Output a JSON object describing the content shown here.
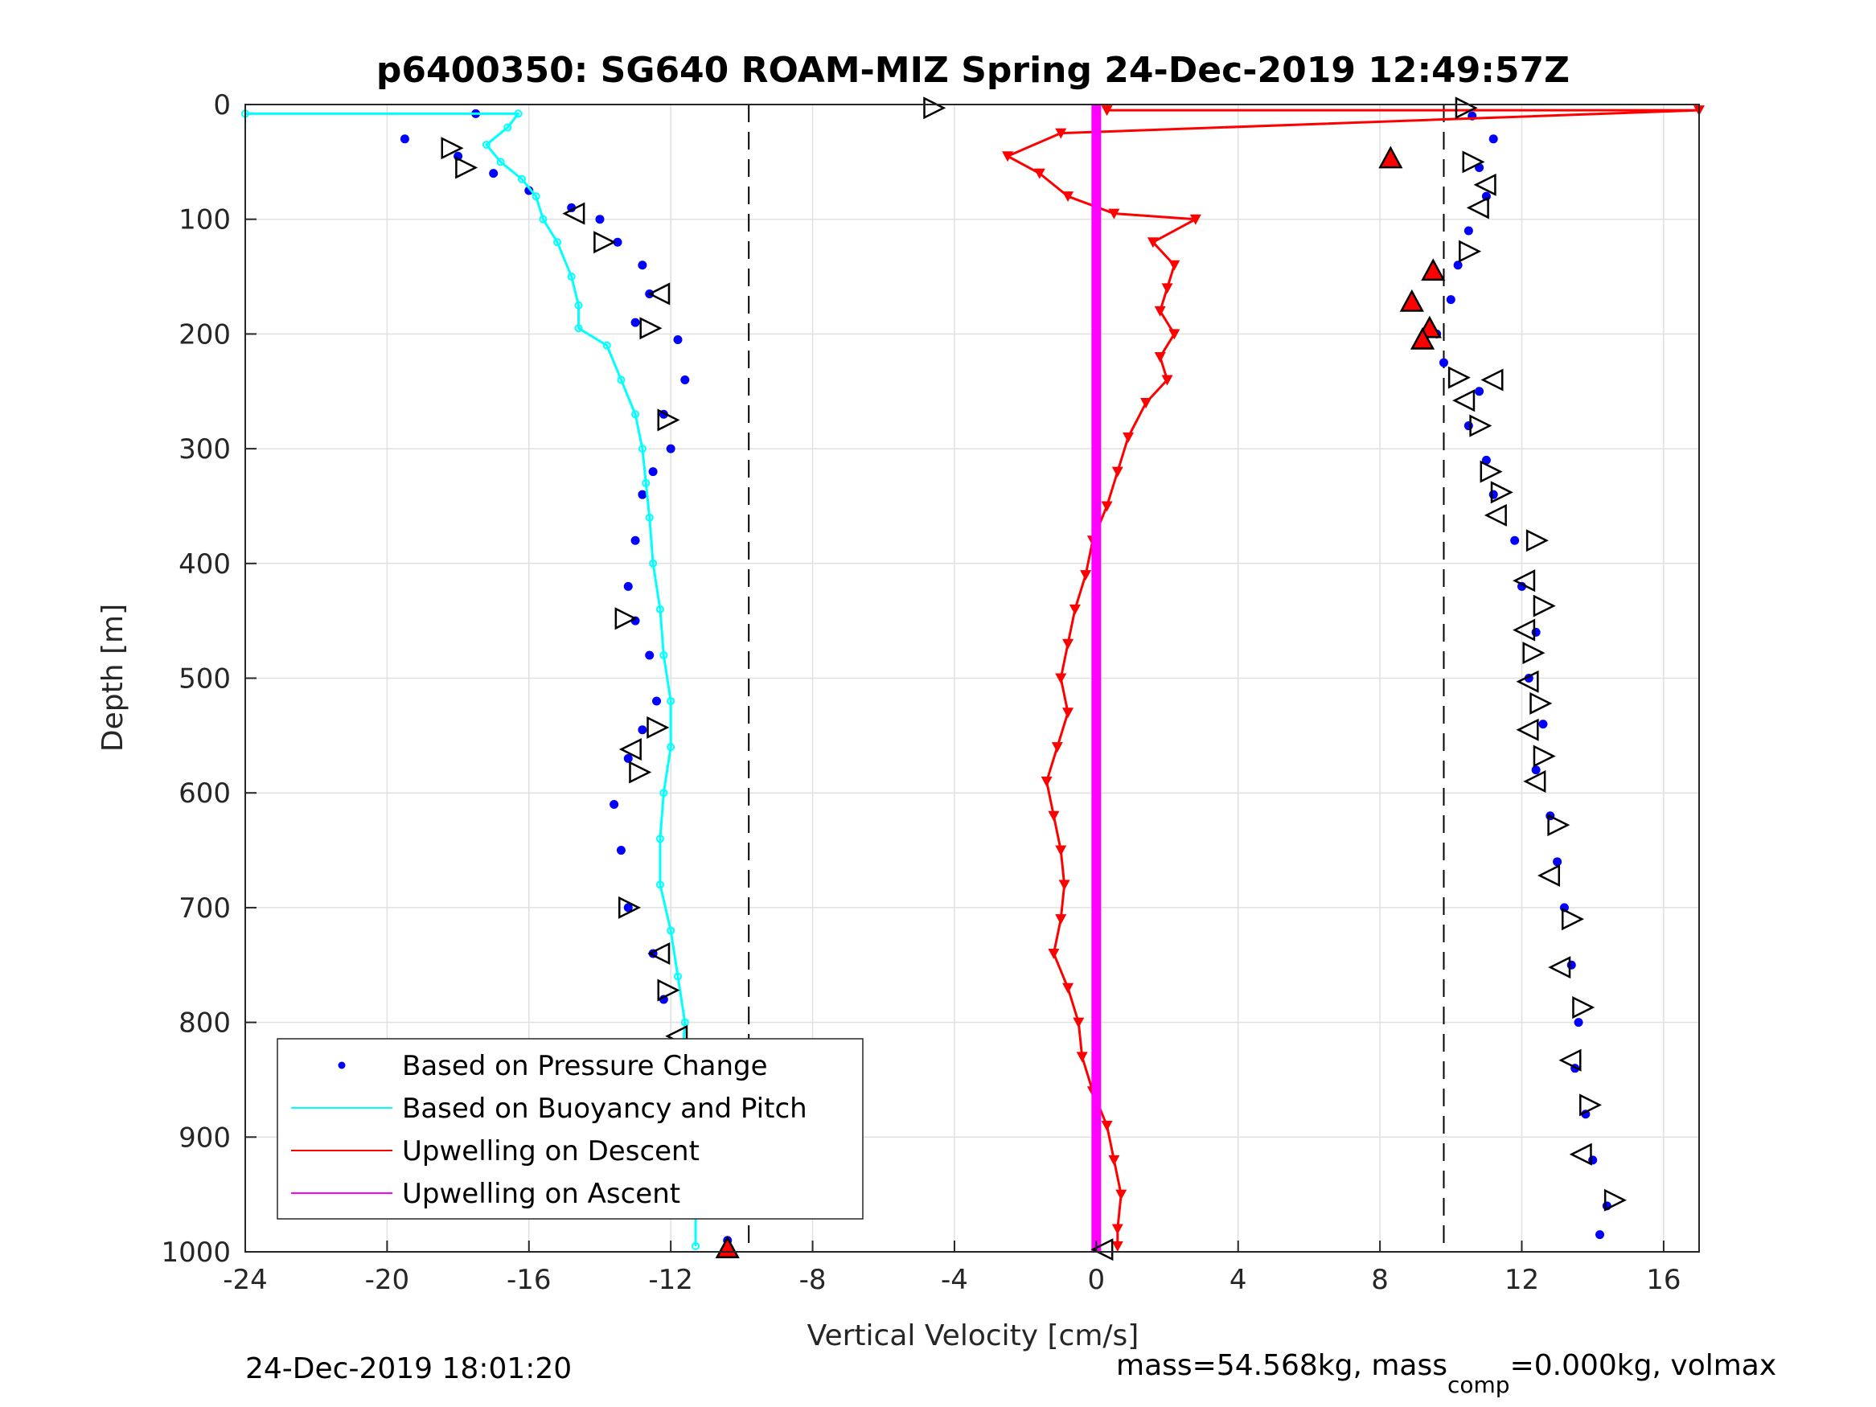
{
  "chart_data": {
    "type": "scatter",
    "title": "p6400350: SG640 ROAM-MIZ Spring 24-Dec-2019 12:49:57Z",
    "xlabel": "Vertical Velocity [cm/s]",
    "ylabel": "Depth [m]",
    "xlim": [
      -24,
      17
    ],
    "ylim": [
      0,
      1000
    ],
    "y_reversed": true,
    "grid": true,
    "x_ticks": [
      -24,
      -20,
      -16,
      -12,
      -8,
      -4,
      0,
      4,
      8,
      12,
      16
    ],
    "y_ticks": [
      0,
      100,
      200,
      300,
      400,
      500,
      600,
      700,
      800,
      900,
      1000
    ],
    "x_tick_labels": [
      "-24",
      "-20",
      "-16",
      "-12",
      "-8",
      "-4",
      "0",
      "4",
      "8",
      "12",
      "16"
    ],
    "y_tick_labels": [
      "0",
      "100",
      "200",
      "300",
      "400",
      "500",
      "600",
      "700",
      "800",
      "900",
      "1000"
    ],
    "reference_lines": [
      -9.8,
      9.8
    ],
    "legend": {
      "placement": "bottom-left",
      "entries": [
        "Based on Pressure Change",
        "Based on Buoyancy and Pitch",
        "Upwelling on Descent",
        "Upwelling on Ascent"
      ]
    },
    "series": [
      {
        "name": "Based on Pressure Change",
        "color": "#0000ff",
        "style": "dots",
        "points": [
          [
            -17.5,
            8
          ],
          [
            -19.5,
            30
          ],
          [
            -18.0,
            45
          ],
          [
            -17.0,
            60
          ],
          [
            -16.0,
            75
          ],
          [
            -14.8,
            90
          ],
          [
            -14.0,
            100
          ],
          [
            -13.5,
            120
          ],
          [
            -12.8,
            140
          ],
          [
            -12.6,
            165
          ],
          [
            -13.0,
            190
          ],
          [
            -11.8,
            205
          ],
          [
            -11.6,
            240
          ],
          [
            -12.2,
            270
          ],
          [
            -12.0,
            300
          ],
          [
            -12.5,
            320
          ],
          [
            -12.8,
            340
          ],
          [
            -13.0,
            380
          ],
          [
            -13.2,
            420
          ],
          [
            -13.0,
            450
          ],
          [
            -12.6,
            480
          ],
          [
            -12.4,
            520
          ],
          [
            -12.8,
            545
          ],
          [
            -13.2,
            570
          ],
          [
            -13.6,
            610
          ],
          [
            -13.4,
            650
          ],
          [
            -13.2,
            700
          ],
          [
            -12.5,
            740
          ],
          [
            -12.2,
            780
          ],
          [
            -11.8,
            820
          ],
          [
            -11.6,
            860
          ],
          [
            -11.2,
            900
          ],
          [
            -10.8,
            950
          ],
          [
            -10.4,
            990
          ],
          [
            10.6,
            10
          ],
          [
            11.2,
            30
          ],
          [
            10.8,
            55
          ],
          [
            11.0,
            80
          ],
          [
            10.5,
            110
          ],
          [
            10.2,
            140
          ],
          [
            10.0,
            170
          ],
          [
            9.6,
            200
          ],
          [
            9.8,
            225
          ],
          [
            10.8,
            250
          ],
          [
            10.5,
            280
          ],
          [
            11.0,
            310
          ],
          [
            11.2,
            340
          ],
          [
            11.8,
            380
          ],
          [
            12.0,
            420
          ],
          [
            12.4,
            460
          ],
          [
            12.2,
            500
          ],
          [
            12.6,
            540
          ],
          [
            12.4,
            580
          ],
          [
            12.8,
            620
          ],
          [
            13.0,
            660
          ],
          [
            13.2,
            700
          ],
          [
            13.4,
            750
          ],
          [
            13.6,
            800
          ],
          [
            13.5,
            840
          ],
          [
            13.8,
            880
          ],
          [
            14.0,
            920
          ],
          [
            14.4,
            960
          ],
          [
            14.2,
            985
          ]
        ]
      },
      {
        "name": "Based on Buoyancy and Pitch",
        "color": "#00ffff",
        "style": "line",
        "points": [
          [
            -24,
            8
          ],
          [
            -16.3,
            8
          ],
          [
            -16.6,
            20
          ],
          [
            -17.2,
            35
          ],
          [
            -16.8,
            50
          ],
          [
            -16.2,
            65
          ],
          [
            -15.8,
            80
          ],
          [
            -15.6,
            100
          ],
          [
            -15.2,
            120
          ],
          [
            -14.8,
            150
          ],
          [
            -14.6,
            175
          ],
          [
            -14.6,
            195
          ],
          [
            -13.8,
            210
          ],
          [
            -13.4,
            240
          ],
          [
            -13.0,
            270
          ],
          [
            -12.8,
            300
          ],
          [
            -12.7,
            330
          ],
          [
            -12.6,
            360
          ],
          [
            -12.5,
            400
          ],
          [
            -12.3,
            440
          ],
          [
            -12.2,
            480
          ],
          [
            -12.0,
            520
          ],
          [
            -12.0,
            560
          ],
          [
            -12.2,
            600
          ],
          [
            -12.3,
            640
          ],
          [
            -12.3,
            680
          ],
          [
            -12.0,
            720
          ],
          [
            -11.8,
            760
          ],
          [
            -11.6,
            800
          ],
          [
            -11.7,
            840
          ],
          [
            -11.5,
            880
          ],
          [
            -11.4,
            920
          ],
          [
            -11.3,
            960
          ],
          [
            -11.3,
            995
          ]
        ]
      },
      {
        "name": "Upwelling on Descent",
        "color": "#ff0000",
        "style": "triangle-down-line",
        "points": [
          [
            0.3,
            5
          ],
          [
            17,
            5
          ],
          [
            -1.0,
            25
          ],
          [
            -2.5,
            45
          ],
          [
            -1.6,
            60
          ],
          [
            -0.8,
            80
          ],
          [
            0.5,
            95
          ],
          [
            2.8,
            100
          ],
          [
            1.6,
            120
          ],
          [
            2.2,
            140
          ],
          [
            2.0,
            160
          ],
          [
            1.8,
            180
          ],
          [
            2.2,
            200
          ],
          [
            1.8,
            220
          ],
          [
            2.0,
            240
          ],
          [
            1.4,
            260
          ],
          [
            0.9,
            290
          ],
          [
            0.6,
            320
          ],
          [
            0.3,
            350
          ],
          [
            -0.1,
            380
          ],
          [
            -0.3,
            410
          ],
          [
            -0.6,
            440
          ],
          [
            -0.8,
            470
          ],
          [
            -1.0,
            500
          ],
          [
            -0.8,
            530
          ],
          [
            -1.1,
            560
          ],
          [
            -1.4,
            590
          ],
          [
            -1.2,
            620
          ],
          [
            -1.0,
            650
          ],
          [
            -0.9,
            680
          ],
          [
            -1.0,
            710
          ],
          [
            -1.2,
            740
          ],
          [
            -0.8,
            770
          ],
          [
            -0.5,
            800
          ],
          [
            -0.4,
            830
          ],
          [
            -0.1,
            860
          ],
          [
            0.3,
            890
          ],
          [
            0.5,
            920
          ],
          [
            0.7,
            950
          ],
          [
            0.6,
            980
          ],
          [
            0.6,
            995
          ]
        ]
      },
      {
        "name": "Upwelling on Ascent",
        "color": "#ff00ff",
        "style": "line",
        "points": [
          [
            0,
            0
          ],
          [
            0,
            1000
          ]
        ]
      }
    ],
    "markers": [
      {
        "type": "right",
        "x": -4.6,
        "y": 3
      },
      {
        "type": "right",
        "x": 10.4,
        "y": 3
      },
      {
        "type": "right",
        "x": -18.2,
        "y": 38
      },
      {
        "type": "right",
        "x": -17.8,
        "y": 55
      },
      {
        "type": "left",
        "x": -14.7,
        "y": 95
      },
      {
        "type": "right",
        "x": -13.9,
        "y": 120
      },
      {
        "type": "left",
        "x": -12.3,
        "y": 165
      },
      {
        "type": "right",
        "x": -12.6,
        "y": 195
      },
      {
        "type": "right",
        "x": -12.1,
        "y": 275
      },
      {
        "type": "right",
        "x": -13.3,
        "y": 448
      },
      {
        "type": "right",
        "x": -12.4,
        "y": 543
      },
      {
        "type": "left",
        "x": -13.1,
        "y": 562
      },
      {
        "type": "right",
        "x": -12.9,
        "y": 582
      },
      {
        "type": "right",
        "x": -13.2,
        "y": 700
      },
      {
        "type": "left",
        "x": -12.3,
        "y": 740
      },
      {
        "type": "right",
        "x": -12.1,
        "y": 772
      },
      {
        "type": "left",
        "x": -11.8,
        "y": 812
      },
      {
        "type": "right",
        "x": -11.8,
        "y": 848
      },
      {
        "type": "right",
        "x": 10.6,
        "y": 50
      },
      {
        "type": "left",
        "x": 11.0,
        "y": 70
      },
      {
        "type": "left",
        "x": 10.8,
        "y": 90
      },
      {
        "type": "right",
        "x": 10.5,
        "y": 128
      },
      {
        "type": "right",
        "x": 10.2,
        "y": 238
      },
      {
        "type": "left",
        "x": 11.2,
        "y": 240
      },
      {
        "type": "left",
        "x": 10.4,
        "y": 258
      },
      {
        "type": "right",
        "x": 10.8,
        "y": 280
      },
      {
        "type": "right",
        "x": 11.1,
        "y": 320
      },
      {
        "type": "right",
        "x": 11.4,
        "y": 338
      },
      {
        "type": "left",
        "x": 11.3,
        "y": 358
      },
      {
        "type": "right",
        "x": 12.4,
        "y": 380
      },
      {
        "type": "left",
        "x": 12.1,
        "y": 415
      },
      {
        "type": "right",
        "x": 12.6,
        "y": 437
      },
      {
        "type": "left",
        "x": 12.1,
        "y": 458
      },
      {
        "type": "right",
        "x": 12.3,
        "y": 478
      },
      {
        "type": "left",
        "x": 12.2,
        "y": 503
      },
      {
        "type": "right",
        "x": 12.5,
        "y": 522
      },
      {
        "type": "left",
        "x": 12.2,
        "y": 545
      },
      {
        "type": "right",
        "x": 12.6,
        "y": 568
      },
      {
        "type": "left",
        "x": 12.4,
        "y": 590
      },
      {
        "type": "right",
        "x": 13.0,
        "y": 628
      },
      {
        "type": "left",
        "x": 12.8,
        "y": 672
      },
      {
        "type": "right",
        "x": 13.4,
        "y": 710
      },
      {
        "type": "left",
        "x": 13.1,
        "y": 752
      },
      {
        "type": "right",
        "x": 13.7,
        "y": 787
      },
      {
        "type": "left",
        "x": 13.4,
        "y": 833
      },
      {
        "type": "right",
        "x": 13.9,
        "y": 872
      },
      {
        "type": "left",
        "x": 13.7,
        "y": 915
      },
      {
        "type": "right",
        "x": 14.6,
        "y": 955
      },
      {
        "type": "left",
        "x": 0.2,
        "y": 998
      },
      {
        "type": "up",
        "x": 8.3,
        "y": 47
      },
      {
        "type": "up",
        "x": 9.5,
        "y": 145
      },
      {
        "type": "up",
        "x": 8.9,
        "y": 172
      },
      {
        "type": "up",
        "x": 9.4,
        "y": 195
      },
      {
        "type": "up",
        "x": 9.2,
        "y": 205
      },
      {
        "type": "up",
        "x": -10.4,
        "y": 997
      }
    ],
    "footer_left": "24-Dec-2019 18:01:20",
    "footer_right_prefix": "mass=54.568kg, mass",
    "footer_right_sub": "comp",
    "footer_right_suffix": "=0.000kg, volmax"
  }
}
